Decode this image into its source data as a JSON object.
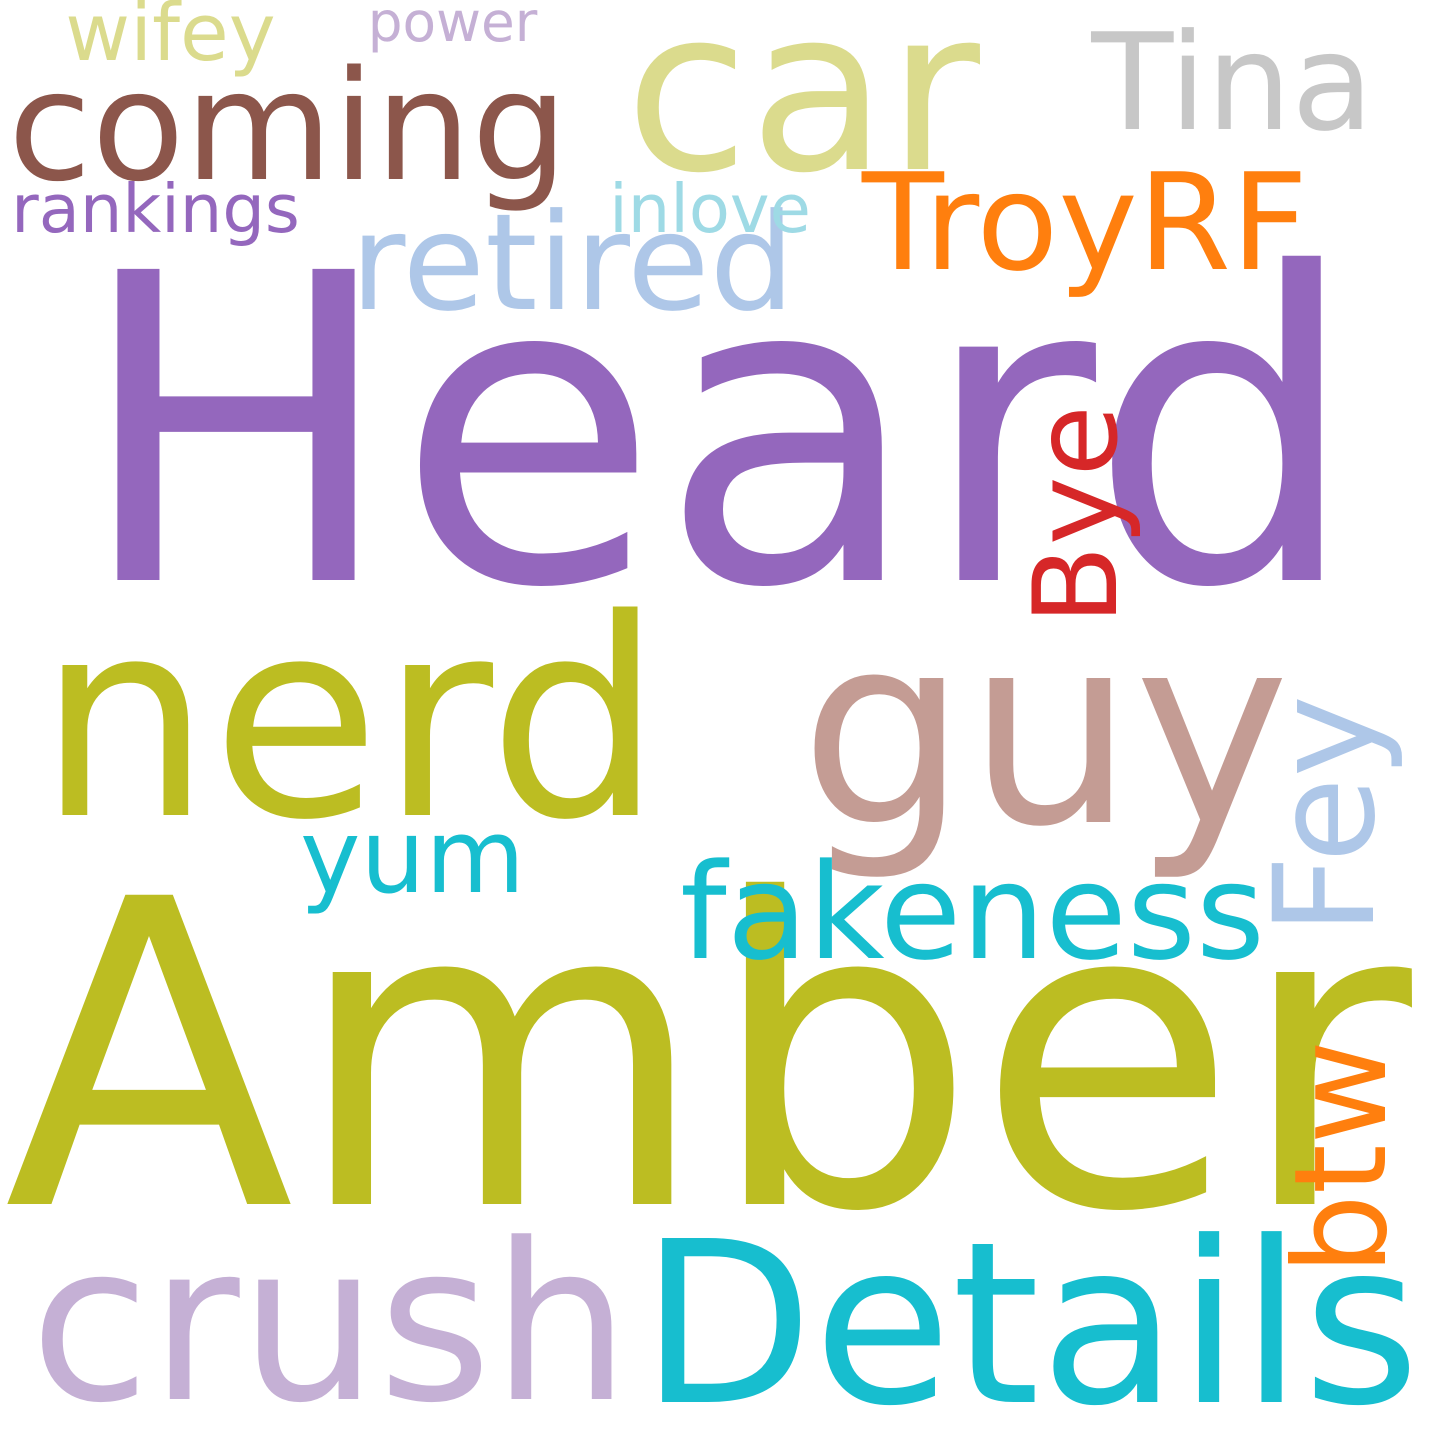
{
  "words": [
    {
      "text": "Heard",
      "color": "#9467bd",
      "rotated": false
    },
    {
      "text": "Amber",
      "color": "#bcbd22",
      "rotated": false
    },
    {
      "text": "car",
      "color": "#dbdb8d",
      "rotated": false
    },
    {
      "text": "guy",
      "color": "#c49c94",
      "rotated": false
    },
    {
      "text": "nerd",
      "color": "#bcbd22",
      "rotated": false
    },
    {
      "text": "crush",
      "color": "#c5b0d5",
      "rotated": false
    },
    {
      "text": "Details",
      "color": "#17becf",
      "rotated": false
    },
    {
      "text": "coming",
      "color": "#8c564b",
      "rotated": false
    },
    {
      "text": "Tina",
      "color": "#c7c7c7",
      "rotated": false
    },
    {
      "text": "TroyRF",
      "color": "#ff7f0e",
      "rotated": false
    },
    {
      "text": "retired",
      "color": "#aec7e8",
      "rotated": false
    },
    {
      "text": "fakeness",
      "color": "#17becf",
      "rotated": false
    },
    {
      "text": "yum",
      "color": "#17becf",
      "rotated": false
    },
    {
      "text": "Bye",
      "color": "#d62728",
      "rotated": true
    },
    {
      "text": "Fey",
      "color": "#aec7e8",
      "rotated": true
    },
    {
      "text": "btw",
      "color": "#ff7f0e",
      "rotated": true
    },
    {
      "text": "wifey",
      "color": "#dbdb8d",
      "rotated": false
    },
    {
      "text": "power",
      "color": "#c5b0d5",
      "rotated": false
    },
    {
      "text": "rankings",
      "color": "#9467bd",
      "rotated": false
    },
    {
      "text": "inlove",
      "color": "#9edae5",
      "rotated": false
    }
  ]
}
